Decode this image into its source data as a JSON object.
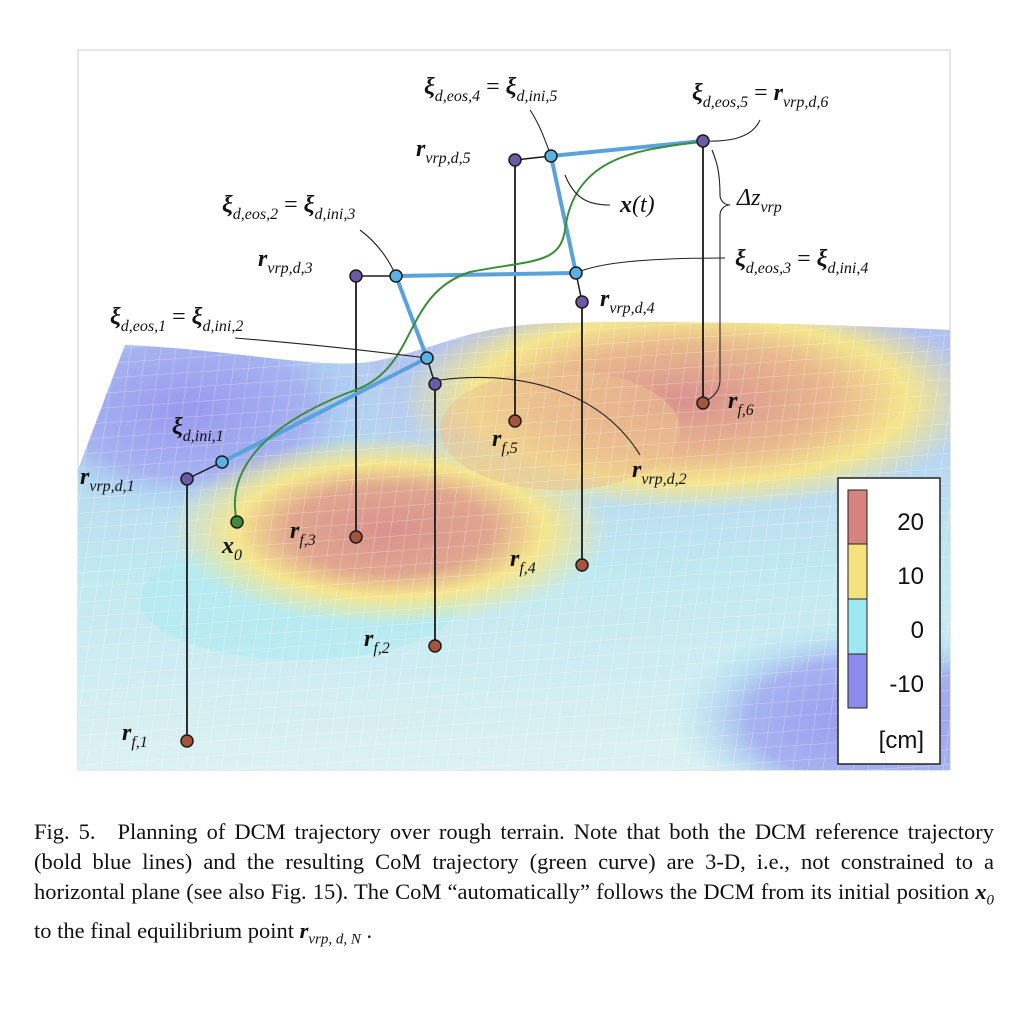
{
  "figure": {
    "labels": {
      "xi_eos4": {
        "sym": "ξ",
        "sub": "d,eos,4",
        "eq": " = ",
        "sym2": "ξ",
        "sub2": "d,ini,5"
      },
      "xi_eos5": {
        "sym": "ξ",
        "sub": "d,eos,5",
        "eq": " = ",
        "sym2": "r",
        "sub2": "vrp,d,6"
      },
      "r_vrp5": {
        "sym": "r",
        "sub": "vrp,d,5"
      },
      "x_t": {
        "sym": "x",
        "rest": "(t)"
      },
      "dz_vrp": {
        "sym": "Δz",
        "sub": "vrp"
      },
      "xi_eos2": {
        "sym": "ξ",
        "sub": "d,eos,2",
        "eq": " = ",
        "sym2": "ξ",
        "sub2": "d,ini,3"
      },
      "r_vrp3": {
        "sym": "r",
        "sub": "vrp,d,3"
      },
      "xi_eos3": {
        "sym": "ξ",
        "sub": "d,eos,3",
        "eq": " = ",
        "sym2": "ξ",
        "sub2": "d,ini,4"
      },
      "r_vrp4": {
        "sym": "r",
        "sub": "vrp,d,4"
      },
      "xi_eos1": {
        "sym": "ξ",
        "sub": "d,eos,1",
        "eq": " = ",
        "sym2": "ξ",
        "sub2": "d,ini,2"
      },
      "r_f6": {
        "sym": "r",
        "sub": "f,6"
      },
      "xi_ini1": {
        "sym": "ξ",
        "sub": "d,ini,1"
      },
      "r_f5": {
        "sym": "r",
        "sub": "f,5"
      },
      "r_vrp2": {
        "sym": "r",
        "sub": "vrp,d,2"
      },
      "r_vrp1": {
        "sym": "r",
        "sub": "vrp,d,1"
      },
      "x0": {
        "sym": "x",
        "sub": "0"
      },
      "r_f3": {
        "sym": "r",
        "sub": "f,3"
      },
      "r_f4": {
        "sym": "r",
        "sub": "f,4"
      },
      "r_f2": {
        "sym": "r",
        "sub": "f,2"
      },
      "r_f1": {
        "sym": "r",
        "sub": "f,1"
      }
    },
    "legend": {
      "ticks": [
        "20",
        "10",
        "0",
        "-10"
      ],
      "unit": "[cm]",
      "colors": [
        "#d4837f",
        "#f4e27e",
        "#9ee9f1",
        "#8c8bec"
      ]
    },
    "colors": {
      "dcm_line": "#5aa2dc",
      "com_curve": "#3d8c3a",
      "vrp_point": "#6b5ba6",
      "foot_point": "#a4553d",
      "dcm_point": "#5ab2e2",
      "x0_point": "#3d8c3a"
    }
  },
  "caption": {
    "fig_label": "Fig. 5.",
    "text_1": "Planning of DCM trajectory over rough terrain. Note that both the DCM reference trajectory (bold blue lines) and the resulting CoM trajectory (green curve) are 3-D, i.e., not constrained to a horizontal plane (see also Fig. 15). The CoM “automatically” follows the DCM from its initial position ",
    "x0_sym": "x",
    "x0_sub": "0",
    "text_2": " to the final equilibrium point ",
    "r_sym": "r",
    "r_sub": "vrp, d, N",
    "text_3": " ."
  }
}
